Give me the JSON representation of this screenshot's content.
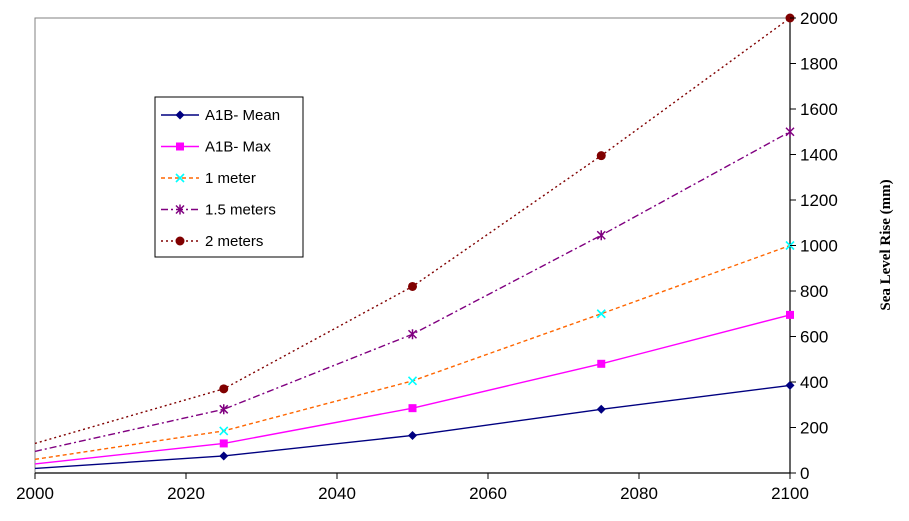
{
  "chart_data": {
    "type": "line",
    "title": "",
    "xlabel": "",
    "ylabel": "Sea Level Rise (mm)",
    "xlim": [
      2000,
      2100
    ],
    "ylim": [
      0,
      2000
    ],
    "x_ticks": [
      "2000",
      "2020",
      "2040",
      "2060",
      "2080",
      "2100"
    ],
    "y_ticks": [
      "0",
      "200",
      "400",
      "600",
      "800",
      "1000",
      "1200",
      "1400",
      "1600",
      "1800",
      "2000"
    ],
    "y_axis_side": "right",
    "grid": false,
    "legend_position": "upper-left",
    "series": [
      {
        "name": "A1B- Mean",
        "color": "#000080",
        "line": "solid",
        "marker": "diamond",
        "x": [
          2000,
          2025,
          2050,
          2075,
          2100
        ],
        "y": [
          20,
          75,
          165,
          280,
          385
        ]
      },
      {
        "name": "A1B- Max",
        "color": "#FF00FF",
        "line": "solid",
        "marker": "square",
        "x": [
          2000,
          2025,
          2050,
          2075,
          2100
        ],
        "y": [
          40,
          130,
          285,
          480,
          695
        ]
      },
      {
        "name": "1 meter",
        "color": "#FF6600",
        "marker_color": "#00FFFF",
        "line": "dashed",
        "marker": "x",
        "x": [
          2000,
          2025,
          2050,
          2075,
          2100
        ],
        "y": [
          60,
          185,
          405,
          700,
          1000
        ]
      },
      {
        "name": "1.5 meters",
        "color": "#800080",
        "line": "dashdot",
        "marker": "star",
        "x": [
          2000,
          2025,
          2050,
          2075,
          2100
        ],
        "y": [
          95,
          280,
          610,
          1045,
          1500
        ]
      },
      {
        "name": "2 meters",
        "color": "#800000",
        "line": "dotted",
        "marker": "circle",
        "x": [
          2000,
          2025,
          2050,
          2075,
          2100
        ],
        "y": [
          130,
          370,
          820,
          1395,
          2000
        ]
      }
    ]
  }
}
